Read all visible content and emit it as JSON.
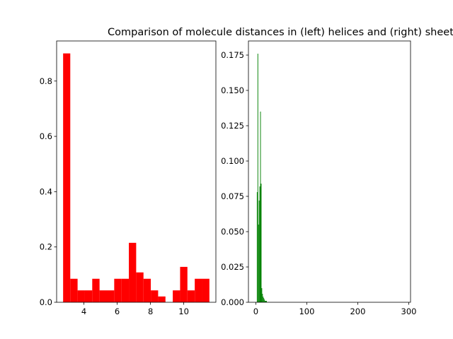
{
  "figure": {
    "title": "Comparison of molecule distances in (left) helices and (right) sheets"
  },
  "chart_data": [
    {
      "type": "bar",
      "panel": "left",
      "color": "#ff0000",
      "x_bins": [
        [
          2.75,
          3.18
        ],
        [
          3.18,
          3.62
        ],
        [
          3.62,
          4.06
        ],
        [
          4.06,
          4.5
        ],
        [
          4.5,
          4.94
        ],
        [
          4.94,
          5.38
        ],
        [
          5.38,
          5.82
        ],
        [
          5.82,
          6.26
        ],
        [
          6.26,
          6.7
        ],
        [
          6.7,
          7.14
        ],
        [
          7.14,
          7.58
        ],
        [
          7.58,
          8.02
        ],
        [
          8.02,
          8.46
        ],
        [
          8.46,
          8.9
        ],
        [
          8.9,
          9.34
        ],
        [
          9.34,
          9.78
        ],
        [
          9.78,
          10.22
        ],
        [
          10.22,
          10.66
        ],
        [
          10.66,
          11.1
        ],
        [
          11.1,
          11.54
        ]
      ],
      "values": [
        0.9,
        0.085,
        0.043,
        0.043,
        0.085,
        0.043,
        0.043,
        0.085,
        0.085,
        0.215,
        0.108,
        0.085,
        0.043,
        0.021,
        0,
        0.043,
        0.128,
        0.043,
        0.085,
        0.085
      ],
      "xlim": [
        2.36,
        11.93
      ],
      "ylim": [
        0,
        0.945
      ],
      "xticks": [
        4,
        6,
        8,
        10
      ],
      "xtick_labels": [
        "4",
        "6",
        "8",
        "10"
      ],
      "yticks": [
        0.0,
        0.2,
        0.4,
        0.6,
        0.8
      ],
      "ytick_labels": [
        "0.0",
        "0.2",
        "0.4",
        "0.6",
        "0.8"
      ]
    },
    {
      "type": "bar",
      "panel": "right",
      "color": "#008000",
      "x_bins": [
        [
          2.0,
          3.3
        ],
        [
          3.3,
          4.6
        ],
        [
          4.6,
          5.9
        ],
        [
          5.9,
          7.2
        ],
        [
          7.2,
          8.5
        ],
        [
          8.5,
          9.8
        ],
        [
          9.8,
          11.1
        ],
        [
          11.1,
          12.4
        ],
        [
          12.4,
          13.7
        ],
        [
          13.7,
          15.0
        ],
        [
          15.0,
          16.3
        ],
        [
          16.3,
          17.6
        ],
        [
          17.6,
          18.9
        ],
        [
          18.9,
          20.2
        ],
        [
          20.2,
          21.5
        ]
      ],
      "values": [
        0.078,
        0.176,
        0.055,
        0.072,
        0.082,
        0.135,
        0.084,
        0.01,
        0.006,
        0.004,
        0.003,
        0.002,
        0.001,
        0.001,
        0.001
      ],
      "xlim": [
        -14.5,
        303.5
      ],
      "ylim": [
        0,
        0.185
      ],
      "xticks": [
        0,
        100,
        200,
        300
      ],
      "xtick_labels": [
        "0",
        "100",
        "200",
        "300"
      ],
      "yticks": [
        0.0,
        0.025,
        0.05,
        0.075,
        0.1,
        0.125,
        0.15,
        0.175
      ],
      "ytick_labels": [
        "0.000",
        "0.025",
        "0.050",
        "0.075",
        "0.100",
        "0.125",
        "0.150",
        "0.175"
      ]
    }
  ]
}
